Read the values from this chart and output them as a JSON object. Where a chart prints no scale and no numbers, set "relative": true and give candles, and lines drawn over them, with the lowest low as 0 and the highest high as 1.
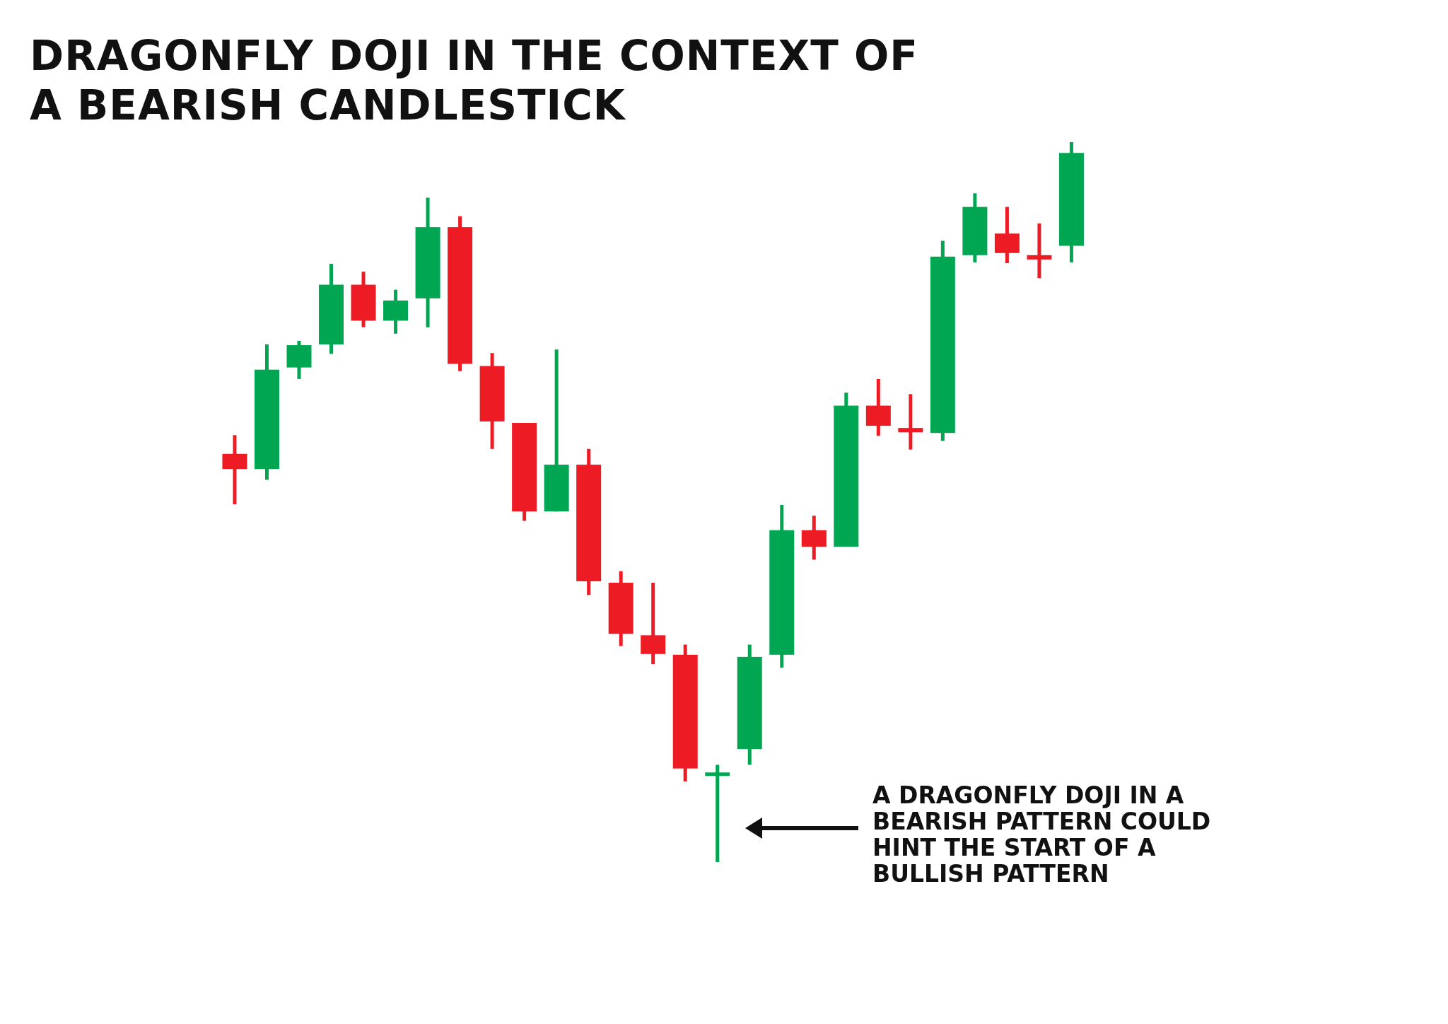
{
  "chart_data": {
    "type": "candlestick",
    "title": "DRAGONFLY DOJI IN THE CONTEXT OF A BEARISH CANDLESTICK",
    "relative": true,
    "tick_labels": false,
    "categories": [
      null,
      null,
      null,
      null,
      null,
      null,
      null,
      null,
      null,
      null,
      null,
      null,
      null,
      null,
      null,
      null,
      null,
      null,
      null,
      null,
      null,
      null,
      null,
      null,
      null,
      null,
      null
    ],
    "ohlc": [
      [
        0.567,
        0.593,
        0.497,
        0.546
      ],
      [
        0.546,
        0.719,
        0.531,
        0.684
      ],
      [
        0.687,
        0.724,
        0.671,
        0.718
      ],
      [
        0.719,
        0.831,
        0.706,
        0.802
      ],
      [
        0.802,
        0.82,
        0.743,
        0.752
      ],
      [
        0.752,
        0.795,
        0.734,
        0.78
      ],
      [
        0.783,
        0.923,
        0.743,
        0.882
      ],
      [
        0.882,
        0.897,
        0.682,
        0.692
      ],
      [
        0.689,
        0.707,
        0.574,
        0.612
      ],
      [
        0.61,
        0.61,
        0.474,
        0.487
      ],
      [
        0.487,
        0.712,
        0.487,
        0.552
      ],
      [
        0.552,
        0.574,
        0.371,
        0.39
      ],
      [
        0.388,
        0.404,
        0.3,
        0.317
      ],
      [
        0.315,
        0.388,
        0.275,
        0.289
      ],
      [
        0.288,
        0.302,
        0.112,
        0.13
      ],
      [
        0.122,
        0.135,
        0,
        0.122
      ],
      [
        0.157,
        0.302,
        0.135,
        0.285
      ],
      [
        0.288,
        0.496,
        0.27,
        0.461
      ],
      [
        0.461,
        0.481,
        0.42,
        0.438
      ],
      [
        0.438,
        0.652,
        0.438,
        0.634
      ],
      [
        0.634,
        0.671,
        0.592,
        0.606
      ],
      [
        0.603,
        0.65,
        0.573,
        0.597
      ],
      [
        0.596,
        0.863,
        0.585,
        0.841
      ],
      [
        0.843,
        0.929,
        0.833,
        0.91
      ],
      [
        0.873,
        0.91,
        0.832,
        0.846
      ],
      [
        0.843,
        0.887,
        0.811,
        0.837
      ],
      [
        0.856,
        1,
        0.833,
        0.985
      ]
    ],
    "colors": [
      "#ed1c24",
      "#00a651",
      "#00a651",
      "#00a651",
      "#ed1c24",
      "#00a651",
      "#00a651",
      "#ed1c24",
      "#ed1c24",
      "#ed1c24",
      "#00a651",
      "#ed1c24",
      "#ed1c24",
      "#ed1c24",
      "#ed1c24",
      "#00a651",
      "#00a651",
      "#00a651",
      "#ed1c24",
      "#00a651",
      "#ed1c24",
      "#ed1c24",
      "#00a651",
      "#00a651",
      "#ed1c24",
      "#ed1c24",
      "#00a651"
    ],
    "annotations": [
      "A DRAGONFLY DOJI IN A BEARISH PATTERN COULD HINT THE START OF A BULLISH PATTERN"
    ]
  }
}
